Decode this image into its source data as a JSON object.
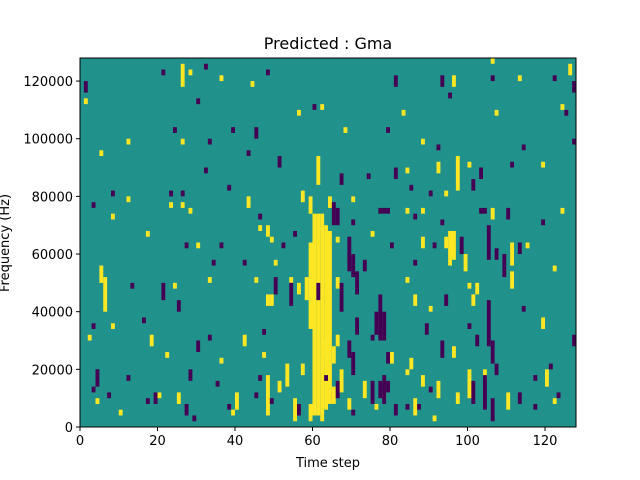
{
  "chart_data": {
    "type": "heatmap",
    "title": "Predicted : Gma",
    "xlabel": "Time step",
    "ylabel": "Frequency (Hz)",
    "xlim": [
      0,
      128
    ],
    "ylim": [
      0,
      128000
    ],
    "x_ticks": [
      0,
      20,
      40,
      60,
      80,
      100,
      120
    ],
    "y_ticks": [
      0,
      20000,
      40000,
      60000,
      80000,
      100000,
      120000
    ],
    "x_tick_labels": [
      "0",
      "20",
      "40",
      "60",
      "80",
      "100",
      "120"
    ],
    "y_tick_labels": [
      "0",
      "20000",
      "40000",
      "60000",
      "80000",
      "100000",
      "120000"
    ],
    "grid": false,
    "legend": "none",
    "colors": {
      "background_value": "#21918c",
      "low_value": "#440154",
      "high_value": "#fde725"
    },
    "cell_height_hz": 2000,
    "high_cells": [
      [
        26,
        118000,
        126000
      ],
      [
        28,
        122000,
        124000
      ],
      [
        36,
        120000,
        122000
      ],
      [
        44,
        118000,
        120000
      ],
      [
        96,
        118000,
        122000
      ],
      [
        106,
        126000,
        128000
      ],
      [
        113,
        120000,
        122000
      ],
      [
        126,
        122000,
        126000
      ],
      [
        1,
        112000,
        114000
      ],
      [
        56,
        108000,
        110000
      ],
      [
        62,
        110000,
        112000
      ],
      [
        83,
        108000,
        110000
      ],
      [
        107,
        108000,
        110000
      ],
      [
        124,
        110000,
        112000
      ],
      [
        12,
        98000,
        100000
      ],
      [
        26,
        98000,
        100000
      ],
      [
        68,
        102000,
        104000
      ],
      [
        88,
        98000,
        100000
      ],
      [
        5,
        94000,
        96000
      ],
      [
        61,
        84000,
        94000
      ],
      [
        97,
        82000,
        94000
      ],
      [
        92,
        88000,
        92000
      ],
      [
        84,
        88000,
        90000
      ],
      [
        100,
        90000,
        92000
      ],
      [
        119,
        90000,
        92000
      ],
      [
        94,
        80000,
        82000
      ],
      [
        12,
        78000,
        80000
      ],
      [
        23,
        76000,
        78000
      ],
      [
        26,
        76000,
        78000
      ],
      [
        28,
        74000,
        76000
      ],
      [
        57,
        78000,
        82000
      ],
      [
        59,
        74000,
        80000
      ],
      [
        64,
        76000,
        80000
      ],
      [
        70,
        78000,
        80000
      ],
      [
        8,
        72000,
        74000
      ],
      [
        43,
        76000,
        80000
      ],
      [
        84,
        74000,
        76000
      ],
      [
        88,
        74000,
        76000
      ],
      [
        106,
        72000,
        76000
      ],
      [
        124,
        74000,
        76000
      ],
      [
        60,
        4000,
        74000
      ],
      [
        61,
        4000,
        74000
      ],
      [
        62,
        4000,
        74000
      ],
      [
        63,
        6000,
        70000
      ],
      [
        64,
        8000,
        68000
      ],
      [
        59,
        34000,
        64000
      ],
      [
        58,
        44000,
        52000
      ],
      [
        65,
        22000,
        28000
      ],
      [
        65,
        8000,
        14000
      ],
      [
        17,
        66000,
        68000
      ],
      [
        30,
        62000,
        64000
      ],
      [
        46,
        68000,
        70000
      ],
      [
        48,
        66000,
        70000
      ],
      [
        49,
        64000,
        66000
      ],
      [
        66,
        64000,
        66000
      ],
      [
        75,
        66000,
        68000
      ],
      [
        88,
        62000,
        66000
      ],
      [
        94,
        62000,
        66000
      ],
      [
        95,
        56000,
        68000
      ],
      [
        96,
        58000,
        68000
      ],
      [
        99,
        54000,
        60000
      ],
      [
        111,
        56000,
        64000
      ],
      [
        115,
        62000,
        64000
      ],
      [
        122,
        54000,
        56000
      ],
      [
        5,
        50000,
        56000
      ],
      [
        6,
        40000,
        52000
      ],
      [
        8,
        34000,
        36000
      ],
      [
        24,
        48000,
        50000
      ],
      [
        33,
        50000,
        52000
      ],
      [
        45,
        50000,
        52000
      ],
      [
        48,
        42000,
        46000
      ],
      [
        49,
        42000,
        46000
      ],
      [
        50,
        56000,
        58000
      ],
      [
        54,
        50000,
        52000
      ],
      [
        56,
        46000,
        50000
      ],
      [
        66,
        48000,
        52000
      ],
      [
        84,
        50000,
        52000
      ],
      [
        86,
        42000,
        46000
      ],
      [
        90,
        40000,
        42000
      ],
      [
        100,
        48000,
        50000
      ],
      [
        101,
        42000,
        46000
      ],
      [
        102,
        46000,
        50000
      ],
      [
        111,
        48000,
        54000
      ],
      [
        119,
        34000,
        38000
      ],
      [
        2,
        30000,
        32000
      ],
      [
        18,
        28000,
        32000
      ],
      [
        22,
        24000,
        26000
      ],
      [
        36,
        22000,
        24000
      ],
      [
        42,
        28000,
        32000
      ],
      [
        47,
        24000,
        26000
      ],
      [
        53,
        14000,
        22000
      ],
      [
        55,
        2000,
        10000
      ],
      [
        57,
        18000,
        22000
      ],
      [
        63,
        24000,
        30000
      ],
      [
        66,
        28000,
        32000
      ],
      [
        80,
        22000,
        26000
      ],
      [
        84,
        18000,
        20000
      ],
      [
        85,
        20000,
        24000
      ],
      [
        88,
        14000,
        18000
      ],
      [
        96,
        24000,
        28000
      ],
      [
        100,
        10000,
        20000
      ],
      [
        104,
        16000,
        20000
      ],
      [
        120,
        14000,
        20000
      ],
      [
        4,
        8000,
        10000
      ],
      [
        10,
        4000,
        6000
      ],
      [
        20,
        10000,
        12000
      ],
      [
        25,
        8000,
        12000
      ],
      [
        40,
        6000,
        12000
      ],
      [
        48,
        4000,
        18000
      ],
      [
        51,
        12000,
        16000
      ],
      [
        59,
        2000,
        8000
      ],
      [
        62,
        2000,
        4000
      ],
      [
        73,
        10000,
        16000
      ],
      [
        76,
        6000,
        8000
      ],
      [
        86,
        4000,
        10000
      ],
      [
        91,
        2000,
        4000
      ],
      [
        92,
        10000,
        16000
      ],
      [
        97,
        8000,
        12000
      ],
      [
        110,
        6000,
        12000
      ],
      [
        122,
        8000,
        10000
      ],
      [
        39,
        4000,
        6000
      ],
      [
        67,
        12000,
        20000
      ],
      [
        69,
        6000,
        10000
      ],
      [
        78,
        10000,
        12000
      ]
    ],
    "low_cells": [
      [
        1,
        116000,
        120000
      ],
      [
        21,
        122000,
        124000
      ],
      [
        32,
        124000,
        126000
      ],
      [
        48,
        122000,
        124000
      ],
      [
        81,
        118000,
        122000
      ],
      [
        93,
        118000,
        122000
      ],
      [
        106,
        120000,
        122000
      ],
      [
        122,
        120000,
        122000
      ],
      [
        127,
        116000,
        120000
      ],
      [
        30,
        112000,
        114000
      ],
      [
        60,
        110000,
        112000
      ],
      [
        125,
        108000,
        110000
      ],
      [
        95,
        114000,
        116000
      ],
      [
        24,
        102000,
        104000
      ],
      [
        33,
        98000,
        100000
      ],
      [
        39,
        102000,
        104000
      ],
      [
        45,
        100000,
        104000
      ],
      [
        79,
        102000,
        104000
      ],
      [
        92,
        96000,
        98000
      ],
      [
        114,
        96000,
        98000
      ],
      [
        127,
        98000,
        100000
      ],
      [
        43,
        94000,
        96000
      ],
      [
        51,
        90000,
        94000
      ],
      [
        74,
        86000,
        88000
      ],
      [
        81,
        86000,
        90000
      ],
      [
        103,
        86000,
        90000
      ],
      [
        8,
        80000,
        82000
      ],
      [
        23,
        80000,
        82000
      ],
      [
        38,
        82000,
        84000
      ],
      [
        67,
        84000,
        88000
      ],
      [
        85,
        82000,
        84000
      ],
      [
        90,
        80000,
        82000
      ],
      [
        101,
        82000,
        86000
      ],
      [
        111,
        90000,
        92000
      ],
      [
        32,
        88000,
        90000
      ],
      [
        3,
        76000,
        78000
      ],
      [
        26,
        80000,
        82000
      ],
      [
        46,
        72000,
        74000
      ],
      [
        65,
        70000,
        78000
      ],
      [
        66,
        70000,
        76000
      ],
      [
        70,
        70000,
        72000
      ],
      [
        77,
        74000,
        76000
      ],
      [
        78,
        74000,
        76000
      ],
      [
        79,
        74000,
        76000
      ],
      [
        86,
        72000,
        74000
      ],
      [
        93,
        70000,
        72000
      ],
      [
        103,
        74000,
        76000
      ],
      [
        104,
        74000,
        76000
      ],
      [
        110,
        72000,
        76000
      ],
      [
        119,
        70000,
        72000
      ],
      [
        27,
        62000,
        64000
      ],
      [
        36,
        62000,
        64000
      ],
      [
        52,
        62000,
        64000
      ],
      [
        55,
        66000,
        68000
      ],
      [
        69,
        54000,
        66000
      ],
      [
        70,
        52000,
        60000
      ],
      [
        71,
        46000,
        54000
      ],
      [
        73,
        54000,
        58000
      ],
      [
        80,
        62000,
        64000
      ],
      [
        86,
        56000,
        58000
      ],
      [
        91,
        62000,
        64000
      ],
      [
        98,
        60000,
        66000
      ],
      [
        105,
        58000,
        70000
      ],
      [
        107,
        58000,
        62000
      ],
      [
        109,
        52000,
        60000
      ],
      [
        113,
        60000,
        64000
      ],
      [
        13,
        48000,
        50000
      ],
      [
        21,
        44000,
        50000
      ],
      [
        25,
        40000,
        44000
      ],
      [
        34,
        56000,
        58000
      ],
      [
        42,
        56000,
        58000
      ],
      [
        50,
        46000,
        52000
      ],
      [
        54,
        42000,
        50000
      ],
      [
        61,
        44000,
        50000
      ],
      [
        67,
        40000,
        50000
      ],
      [
        71,
        32000,
        38000
      ],
      [
        76,
        32000,
        40000
      ],
      [
        77,
        30000,
        46000
      ],
      [
        78,
        30000,
        40000
      ],
      [
        89,
        32000,
        36000
      ],
      [
        94,
        42000,
        46000
      ],
      [
        100,
        34000,
        36000
      ],
      [
        102,
        28000,
        32000
      ],
      [
        105,
        28000,
        44000
      ],
      [
        106,
        22000,
        30000
      ],
      [
        114,
        40000,
        42000
      ],
      [
        127,
        28000,
        32000
      ],
      [
        3,
        34000,
        36000
      ],
      [
        16,
        36000,
        38000
      ],
      [
        30,
        26000,
        30000
      ],
      [
        33,
        30000,
        32000
      ],
      [
        47,
        32000,
        34000
      ],
      [
        69,
        24000,
        30000
      ],
      [
        70,
        18000,
        26000
      ],
      [
        75,
        30000,
        32000
      ],
      [
        79,
        22000,
        26000
      ],
      [
        93,
        24000,
        30000
      ],
      [
        107,
        18000,
        22000
      ],
      [
        121,
        20000,
        22000
      ],
      [
        4,
        14000,
        20000
      ],
      [
        12,
        16000,
        18000
      ],
      [
        28,
        16000,
        20000
      ],
      [
        35,
        14000,
        16000
      ],
      [
        46,
        16000,
        18000
      ],
      [
        66,
        10000,
        16000
      ],
      [
        75,
        8000,
        16000
      ],
      [
        77,
        10000,
        16000
      ],
      [
        78,
        8000,
        18000
      ],
      [
        79,
        12000,
        16000
      ],
      [
        84,
        6000,
        8000
      ],
      [
        90,
        12000,
        14000
      ],
      [
        101,
        8000,
        16000
      ],
      [
        104,
        6000,
        18000
      ],
      [
        117,
        16000,
        18000
      ],
      [
        3,
        12000,
        14000
      ],
      [
        7,
        10000,
        12000
      ],
      [
        19,
        8000,
        12000
      ],
      [
        27,
        4000,
        8000
      ],
      [
        29,
        2000,
        4000
      ],
      [
        38,
        6000,
        8000
      ],
      [
        49,
        8000,
        10000
      ],
      [
        56,
        4000,
        8000
      ],
      [
        70,
        4000,
        6000
      ],
      [
        81,
        4000,
        8000
      ],
      [
        87,
        6000,
        8000
      ],
      [
        106,
        2000,
        10000
      ],
      [
        113,
        8000,
        12000
      ],
      [
        123,
        10000,
        12000
      ],
      [
        17,
        8000,
        10000
      ],
      [
        45,
        10000,
        12000
      ],
      [
        63,
        16000,
        18000
      ],
      [
        117,
        6000,
        8000
      ]
    ]
  }
}
